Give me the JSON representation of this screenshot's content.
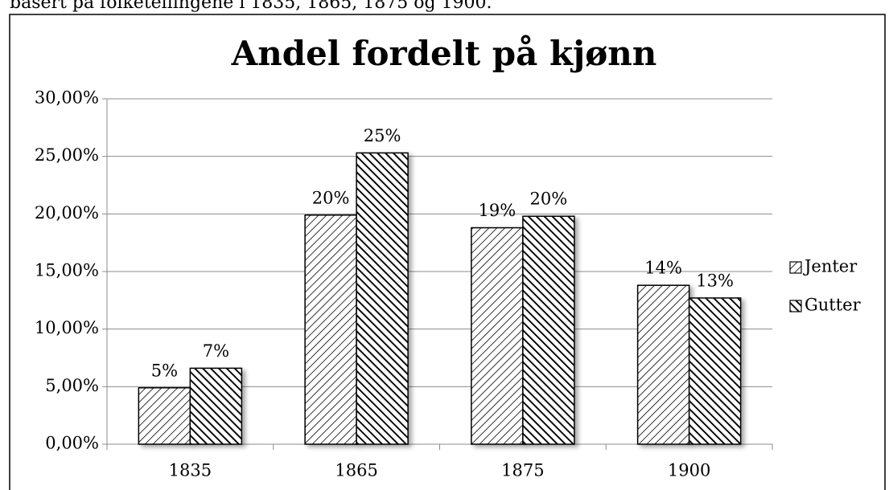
{
  "caption": "basert på folketellingene i 1835, 1865, 1875 og 1900.",
  "chart_data": {
    "type": "bar",
    "title": "Andel fordelt på kjønn",
    "categories": [
      "1835",
      "1865",
      "1875",
      "1900"
    ],
    "series": [
      {
        "name": "Jenter",
        "color": "#000000",
        "hatch": "light",
        "values": [
          4.9,
          19.9,
          18.8,
          13.8
        ],
        "value_labels": [
          "5%",
          "20%",
          "19%",
          "14%"
        ]
      },
      {
        "name": "Gutter",
        "color": "#000000",
        "hatch": "dense",
        "values": [
          6.6,
          25.3,
          19.8,
          12.7
        ],
        "value_labels": [
          "7%",
          "25%",
          "20%",
          "13%"
        ]
      }
    ],
    "ylim": [
      0,
      30
    ],
    "yticks": [
      {
        "value": 0,
        "label": "0,00%"
      },
      {
        "value": 5,
        "label": "5,00%"
      },
      {
        "value": 10,
        "label": "10,00%"
      },
      {
        "value": 15,
        "label": "15,00%"
      },
      {
        "value": 20,
        "label": "20,00%"
      },
      {
        "value": 25,
        "label": "25,00%"
      },
      {
        "value": 30,
        "label": "30,00%"
      }
    ],
    "grid": true,
    "legend": "right"
  }
}
